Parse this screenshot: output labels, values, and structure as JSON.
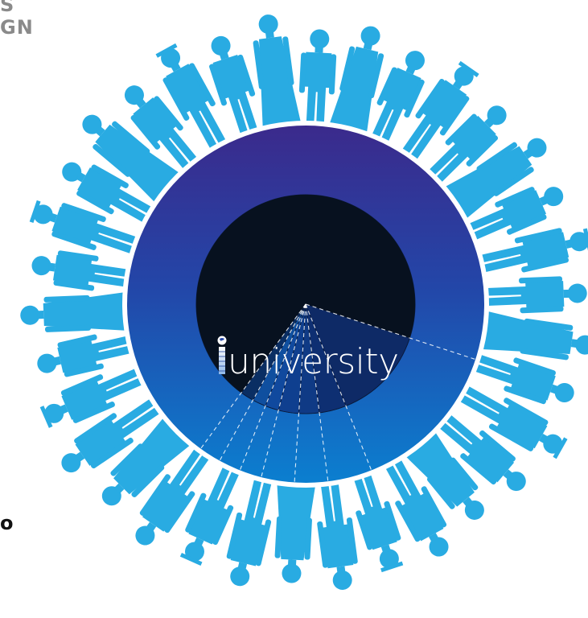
{
  "header": {
    "line1": "S",
    "line2": "GN"
  },
  "footer_fragment": "o",
  "logo": {
    "text": "university",
    "icon": "globe-i-icon"
  },
  "colors": {
    "people": "#29abe2",
    "disc_top": "#3b2a8c",
    "disc_bottom": "#0b7fd0",
    "ring": "#ffffff",
    "pie_dark": "#071426",
    "edge_text_gray": "#8a8a8a",
    "edge_text_black": "#111111"
  },
  "chart_data": {
    "type": "pie",
    "segments": [
      {
        "value": 70
      },
      {
        "value": 14
      },
      {
        "value": 4
      },
      {
        "value": 3
      },
      {
        "value": 3
      },
      {
        "value": 2
      },
      {
        "value": 2
      },
      {
        "value": 2
      }
    ]
  }
}
